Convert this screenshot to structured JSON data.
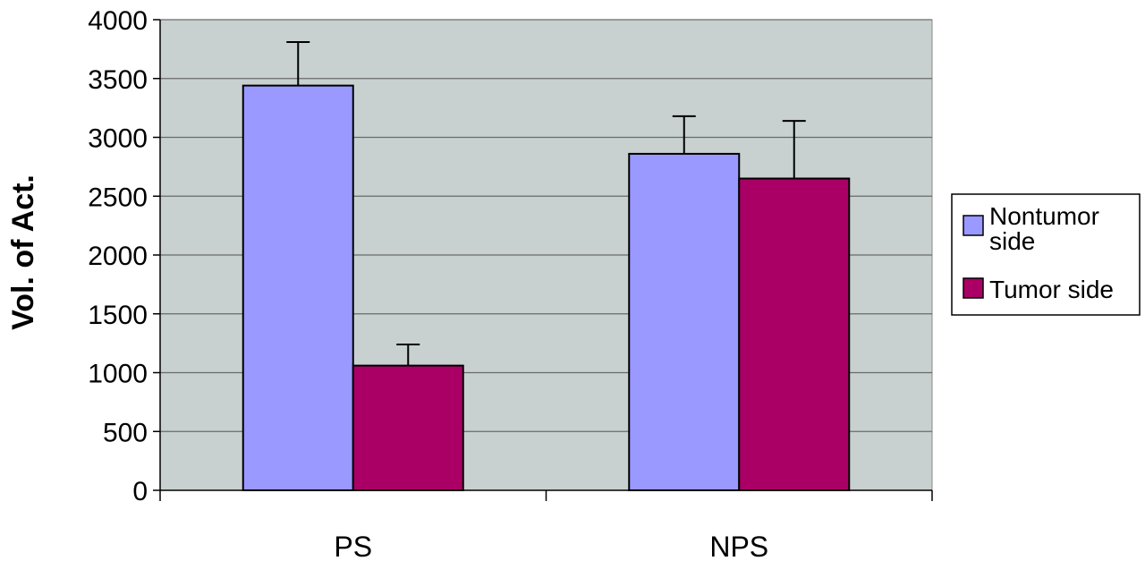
{
  "chart_data": {
    "type": "bar",
    "title": "",
    "xlabel": "",
    "ylabel": "Vol. of Act.",
    "categories": [
      "PS",
      "NPS"
    ],
    "series": [
      {
        "name": "Nontumor side",
        "values": [
          3440,
          2860
        ],
        "errors": [
          370,
          320
        ],
        "color": "#9999ff"
      },
      {
        "name": "Tumor side",
        "values": [
          1060,
          2650
        ],
        "errors": [
          180,
          490
        ],
        "color": "#aa0066"
      }
    ],
    "ylim": [
      0,
      4000
    ],
    "yticks": [
      0,
      500,
      1000,
      1500,
      2000,
      2500,
      3000,
      3500,
      4000
    ],
    "grid": true,
    "plot_background": "#c8d0d0",
    "legend_position": "right"
  },
  "legend": {
    "items": [
      {
        "lines": [
          "Nontumor",
          "side"
        ],
        "color": "#9999ff"
      },
      {
        "lines": [
          "Tumor side"
        ],
        "color": "#aa0066"
      }
    ]
  }
}
